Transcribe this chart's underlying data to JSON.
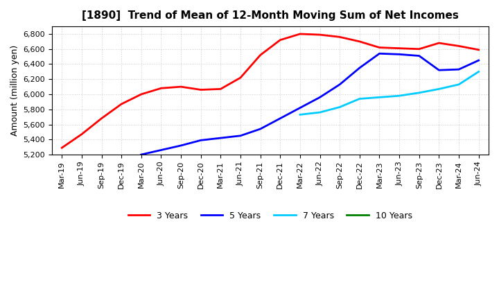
{
  "title": "[1890]  Trend of Mean of 12-Month Moving Sum of Net Incomes",
  "ylabel": "Amount (million yen)",
  "ylim": [
    5200,
    6900
  ],
  "yticks": [
    5200,
    5400,
    5600,
    5800,
    6000,
    6200,
    6400,
    6600,
    6800
  ],
  "x_labels": [
    "Mar-19",
    "Jun-19",
    "Sep-19",
    "Dec-19",
    "Mar-20",
    "Jun-20",
    "Sep-20",
    "Dec-20",
    "Mar-21",
    "Jun-21",
    "Sep-21",
    "Dec-21",
    "Mar-22",
    "Jun-22",
    "Sep-22",
    "Dec-22",
    "Mar-23",
    "Jun-23",
    "Sep-23",
    "Dec-23",
    "Mar-24",
    "Jun-24"
  ],
  "series": [
    {
      "label": "3 Years",
      "color": "#ff0000",
      "data_x": [
        0,
        1,
        2,
        3,
        4,
        5,
        6,
        7,
        8,
        9,
        10,
        11,
        12,
        13,
        14,
        15,
        16,
        17,
        18,
        19,
        20,
        21
      ],
      "data_y": [
        5290,
        5470,
        5680,
        5870,
        6000,
        6080,
        6100,
        6060,
        6070,
        6220,
        6520,
        6720,
        6800,
        6790,
        6760,
        6700,
        6620,
        6610,
        6600,
        6680,
        6640,
        6590
      ]
    },
    {
      "label": "5 Years",
      "color": "#0000ff",
      "data_x": [
        4,
        5,
        6,
        7,
        8,
        9,
        10,
        11,
        12,
        13,
        14,
        15,
        16,
        17,
        18,
        19,
        20,
        21
      ],
      "data_y": [
        5200,
        5260,
        5320,
        5390,
        5420,
        5450,
        5540,
        5680,
        5820,
        5960,
        6130,
        6350,
        6540,
        6530,
        6510,
        6320,
        6330,
        6450
      ]
    },
    {
      "label": "7 Years",
      "color": "#00ccff",
      "data_x": [
        12,
        13,
        14,
        15,
        16,
        17,
        18,
        19,
        20,
        21
      ],
      "data_y": [
        5730,
        5760,
        5830,
        5940,
        5960,
        5980,
        6020,
        6070,
        6130,
        6300
      ]
    },
    {
      "label": "10 Years",
      "color": "#008000",
      "data_x": [],
      "data_y": []
    }
  ],
  "background_color": "#ffffff",
  "grid_color": "#cccccc"
}
